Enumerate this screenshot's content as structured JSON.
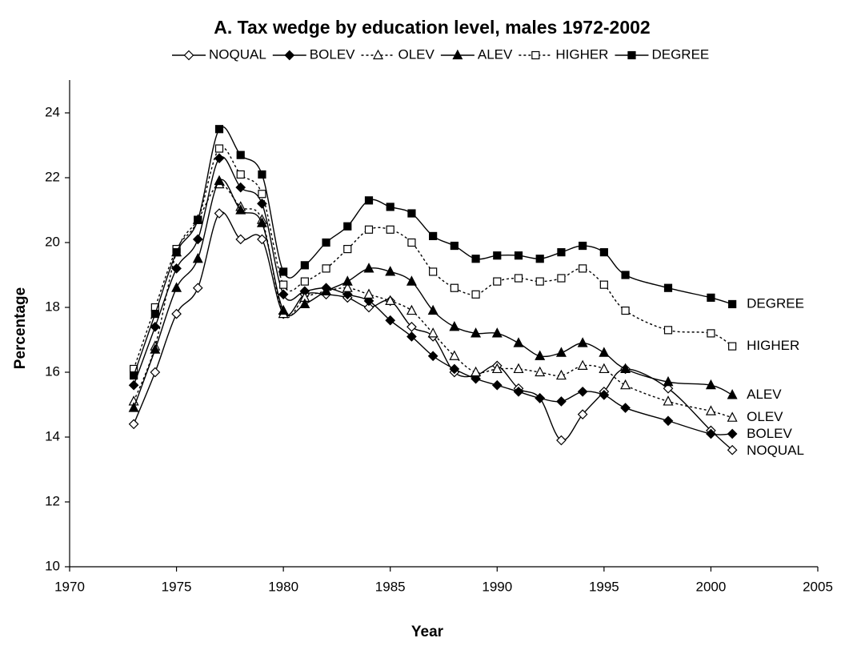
{
  "chart_data": {
    "type": "line",
    "title": "A. Tax wedge by education level, males 1972-2002",
    "x_label": "Year",
    "y_label": "Percentage",
    "x": [
      1973,
      1974,
      1975,
      1976,
      1977,
      1978,
      1979,
      1980,
      1981,
      1982,
      1983,
      1984,
      1985,
      1986,
      1987,
      1988,
      1989,
      1990,
      1991,
      1992,
      1993,
      1994,
      1995,
      1996,
      1998,
      2000,
      2001
    ],
    "xlim": [
      1970,
      2005
    ],
    "xticks": [
      1970,
      1975,
      1980,
      1985,
      1990,
      1995,
      2000,
      2005
    ],
    "ylim": [
      10,
      24
    ],
    "yticks": [
      10,
      12,
      14,
      16,
      18,
      20,
      22,
      24
    ],
    "grid": false,
    "smooth": true,
    "series": [
      {
        "name": "NOQUAL",
        "color": "#000000",
        "marker": "diamond",
        "filled": false,
        "dashed": false,
        "values": [
          14.4,
          16.0,
          17.8,
          18.6,
          20.9,
          20.1,
          20.1,
          17.8,
          18.4,
          18.4,
          18.3,
          18.0,
          18.2,
          17.4,
          17.1,
          16.0,
          15.9,
          16.2,
          15.5,
          15.2,
          13.9,
          14.7,
          15.4,
          16.1,
          15.5,
          14.2,
          13.6
        ]
      },
      {
        "name": "BOLEV",
        "color": "#000000",
        "marker": "diamond",
        "filled": true,
        "dashed": false,
        "values": [
          15.6,
          17.4,
          19.2,
          20.1,
          22.6,
          21.7,
          21.2,
          18.4,
          18.5,
          18.6,
          18.4,
          18.2,
          17.6,
          17.1,
          16.5,
          16.1,
          15.8,
          15.6,
          15.4,
          15.2,
          15.1,
          15.4,
          15.3,
          14.9,
          14.5,
          14.1,
          14.1
        ]
      },
      {
        "name": "OLEV",
        "color": "#000000",
        "marker": "triangle",
        "filled": false,
        "dashed": true,
        "values": [
          15.1,
          16.8,
          19.7,
          20.7,
          21.8,
          21.1,
          20.7,
          17.8,
          18.3,
          18.5,
          18.6,
          18.4,
          18.2,
          17.9,
          17.2,
          16.5,
          16.0,
          16.1,
          16.1,
          16.0,
          15.9,
          16.2,
          16.1,
          15.6,
          15.1,
          14.8,
          14.6
        ]
      },
      {
        "name": "ALEV",
        "color": "#000000",
        "marker": "triangle",
        "filled": true,
        "dashed": false,
        "values": [
          14.9,
          16.7,
          18.6,
          19.5,
          21.9,
          21.0,
          20.6,
          17.9,
          18.1,
          18.5,
          18.8,
          19.2,
          19.1,
          18.8,
          17.9,
          17.4,
          17.2,
          17.2,
          16.9,
          16.5,
          16.6,
          16.9,
          16.6,
          16.1,
          15.7,
          15.6,
          15.3
        ]
      },
      {
        "name": "HIGHER",
        "color": "#000000",
        "marker": "square",
        "filled": false,
        "dashed": true,
        "values": [
          16.1,
          18.0,
          19.8,
          20.7,
          22.9,
          22.1,
          21.5,
          18.7,
          18.8,
          19.2,
          19.8,
          20.4,
          20.4,
          20.0,
          19.1,
          18.6,
          18.4,
          18.8,
          18.9,
          18.8,
          18.9,
          19.2,
          18.7,
          17.9,
          17.3,
          17.2,
          16.8
        ]
      },
      {
        "name": "DEGREE",
        "color": "#000000",
        "marker": "square",
        "filled": true,
        "dashed": false,
        "values": [
          15.9,
          17.8,
          19.7,
          20.7,
          23.5,
          22.7,
          22.1,
          19.1,
          19.3,
          20.0,
          20.5,
          21.3,
          21.1,
          20.9,
          20.2,
          19.9,
          19.5,
          19.6,
          19.6,
          19.5,
          19.7,
          19.9,
          19.7,
          19.0,
          18.6,
          18.3,
          18.1
        ]
      }
    ]
  }
}
